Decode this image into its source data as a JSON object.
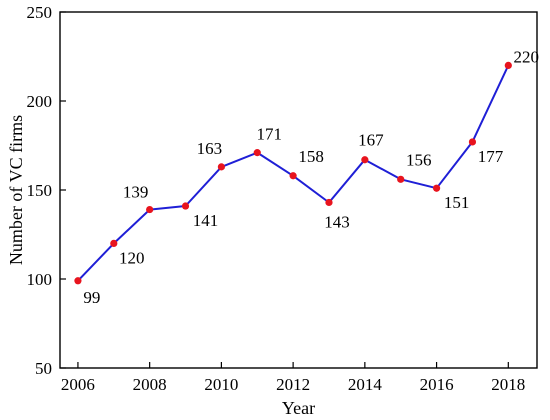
{
  "chart_data": {
    "type": "line",
    "xlabel": "Year",
    "ylabel": "Number of VC firms",
    "xlim": [
      2005.5,
      2018.8
    ],
    "ylim": [
      50,
      250
    ],
    "xticks": [
      2006,
      2008,
      2010,
      2012,
      2014,
      2016,
      2018
    ],
    "yticks": [
      50,
      100,
      150,
      200,
      250
    ],
    "grid": false,
    "series": [
      {
        "x": [
          2006,
          2007,
          2008,
          2009,
          2010,
          2011,
          2012,
          2013,
          2014,
          2015,
          2016,
          2017,
          2018
        ],
        "values": [
          99,
          120,
          139,
          141,
          163,
          171,
          158,
          143,
          167,
          156,
          151,
          177,
          220
        ],
        "labels": [
          "99",
          "120",
          "139",
          "141",
          "163",
          "171",
          "158",
          "143",
          "167",
          "156",
          "151",
          "177",
          "220"
        ]
      }
    ],
    "colors": {
      "line": "#1f1fd6",
      "marker": "#e8141e",
      "axis": "#000000"
    }
  }
}
